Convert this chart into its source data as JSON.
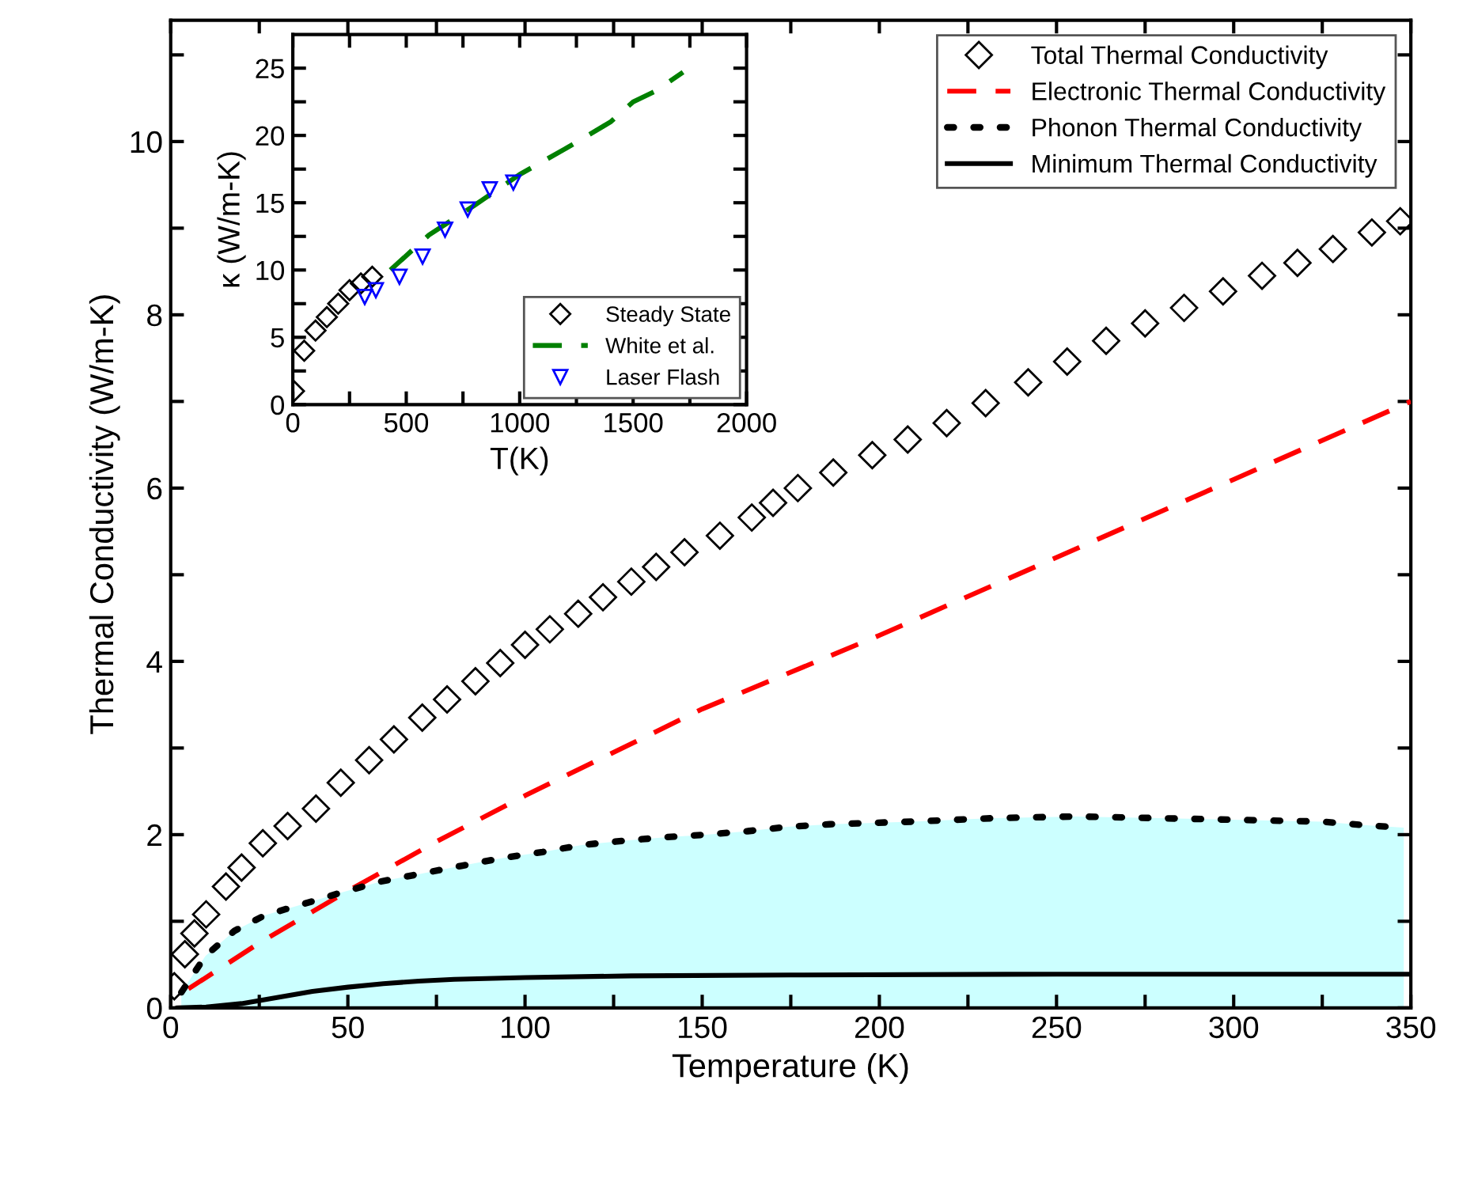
{
  "chart_data": [
    {
      "type": "line",
      "xlabel": "Temperature (K)",
      "ylabel": "Thermal Conductivity (W/m-K)",
      "xlim": [
        0,
        350
      ],
      "ylim": [
        0,
        11.4
      ],
      "xticks": [
        0,
        {
          "value": 25,
          "label": null
        },
        50,
        {
          "value": 75,
          "label": null
        },
        100,
        {
          "value": 125,
          "label": null
        },
        150,
        {
          "value": 175,
          "label": null
        },
        200,
        {
          "value": 225,
          "label": null
        },
        250,
        {
          "value": 275,
          "label": null
        },
        300,
        {
          "value": 325,
          "label": null
        },
        350
      ],
      "yticks": [
        0,
        {
          "value": 1,
          "label": null
        },
        2,
        {
          "value": 3,
          "label": null
        },
        4,
        {
          "value": 5,
          "label": null
        },
        6,
        {
          "value": 7,
          "label": null
        },
        8,
        {
          "value": 9,
          "label": null
        },
        10,
        {
          "value": 11,
          "label": null
        }
      ],
      "legend": "top right",
      "grid": false,
      "series": [
        {
          "type": "scatter",
          "name": "Total Thermal Conductivity",
          "color": "#000000",
          "marker": "diamond",
          "x": [
            1,
            4,
            6.7,
            10,
            15.6,
            20,
            26,
            33,
            41,
            48,
            56,
            63,
            71,
            78,
            86,
            93,
            100,
            107,
            115,
            122,
            130,
            137,
            145,
            155,
            164,
            170,
            177,
            187,
            198,
            208,
            219,
            230,
            242,
            253,
            264,
            275,
            286,
            297,
            308,
            318,
            328,
            339,
            347
          ],
          "values": [
            0.25,
            0.62,
            0.86,
            1.08,
            1.4,
            1.62,
            1.9,
            2.1,
            2.3,
            2.6,
            2.86,
            3.1,
            3.35,
            3.56,
            3.77,
            3.98,
            4.19,
            4.37,
            4.55,
            4.74,
            4.92,
            5.09,
            5.26,
            5.45,
            5.66,
            5.83,
            6.0,
            6.18,
            6.38,
            6.56,
            6.75,
            6.98,
            7.22,
            7.46,
            7.7,
            7.9,
            8.08,
            8.27,
            8.45,
            8.6,
            8.76,
            8.95,
            9.08
          ]
        },
        {
          "name": "Electronic Thermal Conductivity",
          "color": "#ff0000",
          "line_style": "dashed",
          "x": [
            5,
            25,
            50,
            75,
            100,
            150,
            200,
            250,
            300,
            350
          ],
          "values": [
            0.22,
            0.75,
            1.35,
            1.92,
            2.45,
            3.45,
            4.3,
            5.2,
            6.1,
            7.0
          ]
        },
        {
          "type": "area",
          "name": "Phonon Thermal Conductivity",
          "color": "#000000",
          "line_style": "dotted",
          "x": [
            3,
            9.8,
            18,
            26.6,
            37.5,
            48,
            59.4,
            70.7,
            82,
            93.6,
            105,
            116,
            128,
            139.5,
            151,
            162.8,
            174,
            186,
            209,
            232,
            255.5,
            279,
            302,
            325,
            336.6,
            348
          ],
          "values": [
            0.18,
            0.6,
            0.89,
            1.07,
            1.2,
            1.33,
            1.46,
            1.55,
            1.64,
            1.73,
            1.8,
            1.88,
            1.93,
            1.97,
            2.0,
            2.04,
            2.09,
            2.12,
            2.15,
            2.19,
            2.21,
            2.19,
            2.17,
            2.15,
            2.11,
            2.08
          ]
        },
        {
          "name": "Minimum Thermal Conductivity",
          "color": "#000000",
          "line_style": "solid",
          "x": [
            2,
            10,
            20,
            30,
            40,
            50,
            60,
            70,
            80,
            100,
            130,
            175,
            250,
            350
          ],
          "values": [
            0,
            0.01,
            0.05,
            0.12,
            0.19,
            0.24,
            0.28,
            0.31,
            0.33,
            0.35,
            0.37,
            0.38,
            0.39,
            0.39
          ]
        }
      ]
    },
    {
      "type": "line",
      "xlabel": "T(K)",
      "ylabel": "κ (W/m-K)",
      "xlim": [
        0,
        2000
      ],
      "ylim": [
        0,
        27.5
      ],
      "xticks": [
        0,
        {
          "value": 250,
          "label": null
        },
        500,
        {
          "value": 750,
          "label": null
        },
        1000,
        {
          "value": 1250,
          "label": null
        },
        1500,
        {
          "value": 1750,
          "label": null
        },
        2000
      ],
      "yticks": [
        0,
        {
          "value": 2.5,
          "label": null
        },
        5,
        {
          "value": 7.5,
          "label": null
        },
        10,
        {
          "value": 12.5,
          "label": null
        },
        15,
        {
          "value": 17.5,
          "label": null
        },
        20,
        {
          "value": 22.5,
          "label": null
        },
        25
      ],
      "legend": "bottom right",
      "grid": false,
      "series": [
        {
          "type": "scatter",
          "name": "Steady State",
          "color": "#000000",
          "marker": "diamond",
          "x": [
            5,
            50,
            100,
            150,
            200,
            250,
            300,
            350
          ],
          "values": [
            1,
            4,
            5.5,
            6.5,
            7.5,
            8.5,
            9,
            9.5
          ]
        },
        {
          "name": "White et al.",
          "color": "#008000",
          "line_style": "dashed",
          "x": [
            430,
            600,
            800,
            1000,
            1200,
            1400,
            1500,
            1600,
            1720
          ],
          "values": [
            10.0,
            12.6,
            14.8,
            17.1,
            19.0,
            21.0,
            22.5,
            23.3,
            24.7
          ]
        },
        {
          "type": "scatter",
          "name": "Laser Flash",
          "color": "#0000ff",
          "marker": "triangle",
          "x": [
            317,
            366,
            470,
            572,
            671,
            771,
            868,
            972
          ],
          "values": [
            8,
            8.5,
            9.5,
            11,
            13,
            14.5,
            16,
            16.5
          ]
        }
      ]
    }
  ]
}
